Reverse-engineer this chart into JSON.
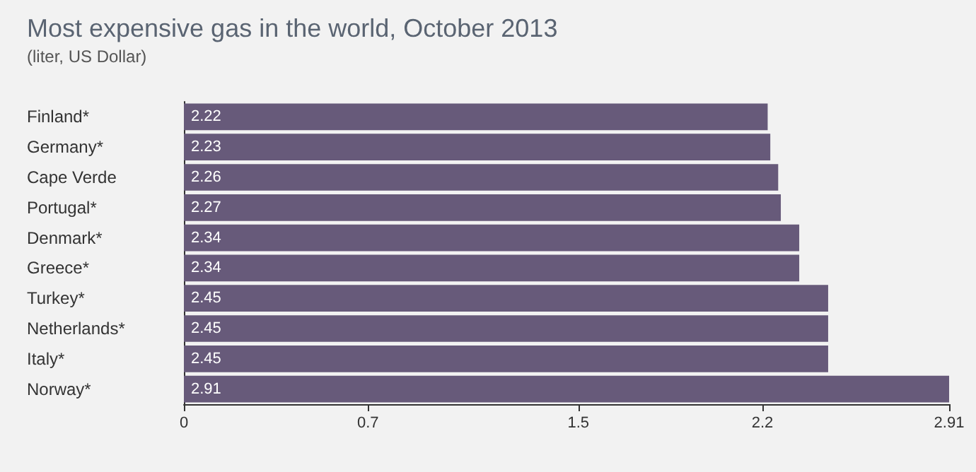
{
  "chart_data": {
    "type": "bar",
    "orientation": "horizontal",
    "title": "Most expensive gas in the world, October 2013",
    "subtitle": "(liter, US Dollar)",
    "categories": [
      "Finland*",
      "Germany*",
      "Cape Verde",
      "Portugal*",
      "Denmark*",
      "Greece*",
      "Turkey*",
      "Netherlands*",
      "Italy*",
      "Norway*"
    ],
    "values": [
      2.22,
      2.23,
      2.26,
      2.27,
      2.34,
      2.34,
      2.45,
      2.45,
      2.45,
      2.91
    ],
    "color": "#675a7a",
    "xlim": [
      0,
      2.91
    ],
    "xticks": [
      0,
      0.7,
      1.5,
      2.2,
      2.91
    ],
    "grid": false,
    "data_labels": true
  }
}
